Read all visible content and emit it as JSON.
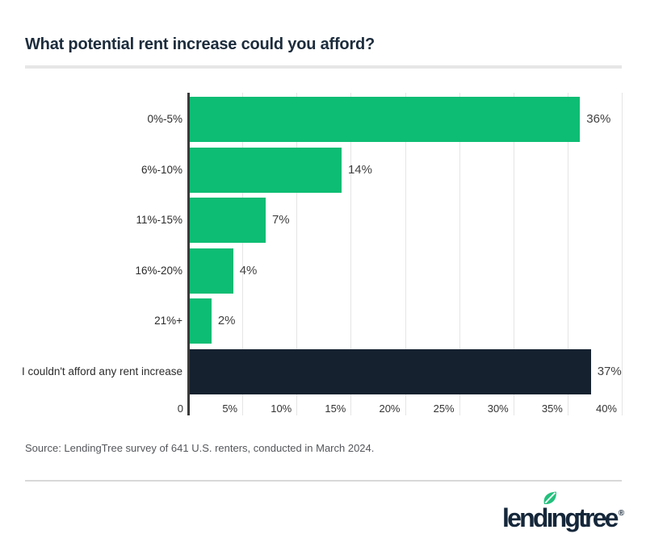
{
  "header": {
    "title": "What potential rent increase could you afford?"
  },
  "chart_data": {
    "type": "bar",
    "orientation": "horizontal",
    "title": "What potential rent increase could you afford?",
    "categories": [
      "0%-5%",
      "6%-10%",
      "11%-15%",
      "16%-20%",
      "21%+",
      "I couldn't afford any rent increase"
    ],
    "values": [
      36,
      14,
      7,
      4,
      2,
      37
    ],
    "value_labels": [
      "36%",
      "14%",
      "7%",
      "4%",
      "2%",
      "37%"
    ],
    "bar_colors": [
      "#0dbd73",
      "#0dbd73",
      "#0dbd73",
      "#0dbd73",
      "#0dbd73",
      "#15212f"
    ],
    "xlim": [
      0,
      40
    ],
    "x_ticks": [
      0,
      5,
      10,
      15,
      20,
      25,
      30,
      35,
      40
    ],
    "x_tick_labels": [
      "0",
      "5%",
      "10%",
      "15%",
      "20%",
      "25%",
      "30%",
      "35%",
      "40%"
    ],
    "xlabel": "",
    "ylabel": "",
    "grid": true,
    "legend": false
  },
  "colors": {
    "bar_green": "#0dbd73",
    "bar_navy": "#15212f",
    "title_navy": "#1c2c3c",
    "gridline": "#e5e5e5",
    "axis_line": "#3a3a3a",
    "leaf_green": "#22c07c"
  },
  "footer": {
    "source": "Source: LendingTree survey of 641 U.S. renters, conducted in March 2024.",
    "logo": {
      "part1": "lend",
      "part2": "ıngtree",
      "registered": "®"
    }
  }
}
